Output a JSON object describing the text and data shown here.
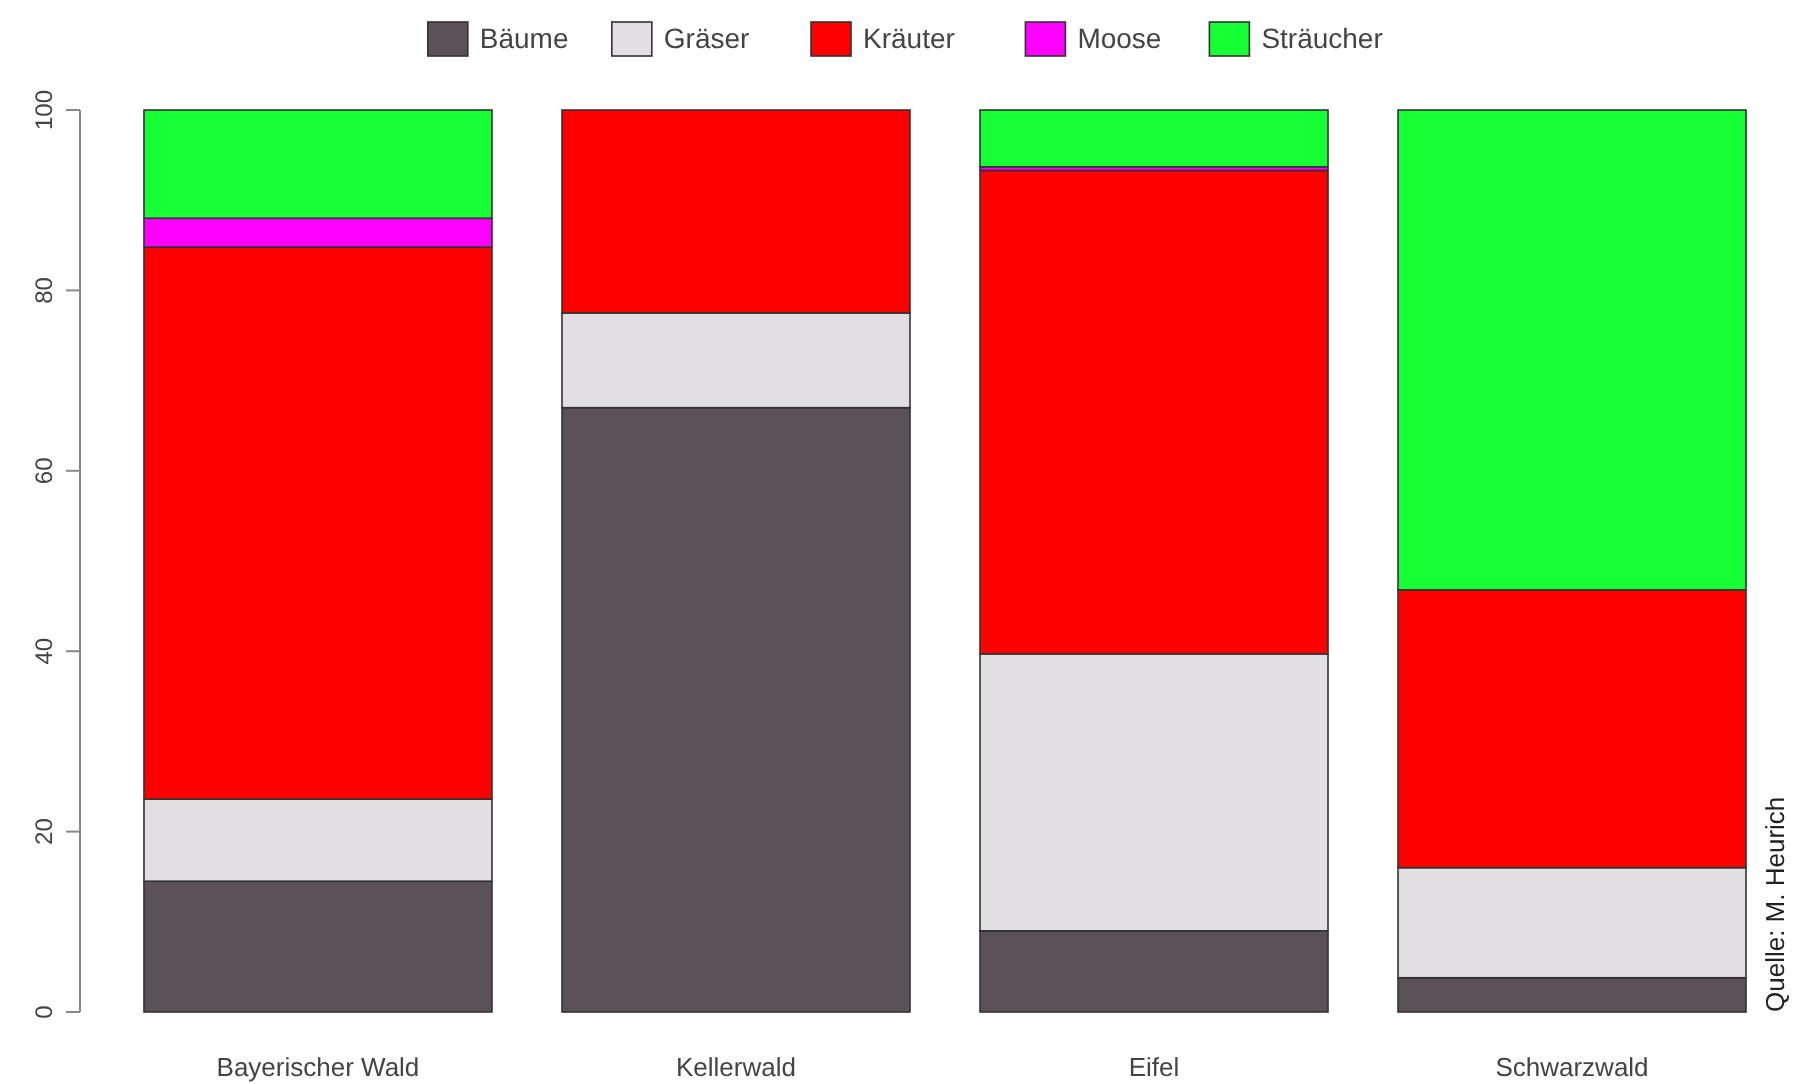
{
  "chart_data": {
    "type": "bar",
    "stacked": true,
    "categories": [
      "Bayerischer Wald",
      "Kellerwald",
      "Eifel",
      "Schwarzwald"
    ],
    "series": [
      {
        "name": "Bäume",
        "color": "#5a5257",
        "values": [
          14.5,
          67.0,
          9.0,
          3.8
        ]
      },
      {
        "name": "Gräser",
        "color": "#e1dfe2",
        "values": [
          9.1,
          10.5,
          30.7,
          12.2
        ]
      },
      {
        "name": "Kräuter",
        "color": "#ff0000",
        "values": [
          61.2,
          22.5,
          53.6,
          30.8
        ]
      },
      {
        "name": "Moose",
        "color": "#fe00fe",
        "values": [
          3.2,
          0,
          0.4,
          0
        ]
      },
      {
        "name": "Sträucher",
        "color": "#17ff35",
        "values": [
          12.0,
          0,
          6.3,
          53.2
        ]
      }
    ],
    "ylim": [
      0,
      100
    ],
    "yticks": [
      0,
      20,
      40,
      60,
      80,
      100
    ],
    "legend": "top",
    "grid": false,
    "annotations": [
      "Quelle: M. Heurich"
    ]
  }
}
